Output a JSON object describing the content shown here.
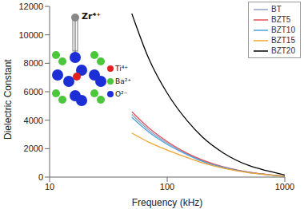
{
  "chart_data": {
    "type": "line",
    "x_label": "Frequency (kHz)",
    "y_label": "Dielectric Constant",
    "log": "x",
    "grid": false,
    "legend": "top right",
    "xlim": [
      10,
      1000
    ],
    "xticks": [
      10,
      100,
      1000
    ],
    "ylim": [
      0,
      12000
    ],
    "yticks": [
      0,
      2000,
      4000,
      6000,
      8000,
      10000,
      12000
    ],
    "x": [
      50,
      70,
      100,
      150,
      200,
      300,
      500,
      700,
      1000
    ],
    "annotations": [
      "Zr⁴⁺",
      "Ti⁴⁺",
      "Ba²⁺",
      "O²⁻"
    ],
    "series": [
      {
        "name": "BT",
        "color": "#8ea3c4",
        "marker": "none",
        "line_style": "solid",
        "values": [
          4400,
          3300,
          2400,
          1600,
          1150,
          700,
          330,
          180,
          60
        ]
      },
      {
        "name": "BZT5",
        "color": "#e0505a",
        "marker": "none",
        "line_style": "solid",
        "values": [
          4600,
          3450,
          2500,
          1650,
          1200,
          720,
          340,
          190,
          60
        ]
      },
      {
        "name": "BZT10",
        "color": "#4aa3df",
        "marker": "none",
        "line_style": "solid",
        "values": [
          4200,
          3150,
          2300,
          1550,
          1100,
          680,
          320,
          180,
          60
        ]
      },
      {
        "name": "BZT15",
        "color": "#f0a432",
        "marker": "none",
        "line_style": "solid",
        "values": [
          3100,
          2450,
          1900,
          1350,
          1000,
          620,
          300,
          170,
          50
        ]
      },
      {
        "name": "BZT20",
        "color": "#000000",
        "marker": "none",
        "line_style": "solid",
        "values": [
          11500,
          8300,
          5900,
          3900,
          2800,
          1700,
          800,
          450,
          150
        ]
      }
    ]
  }
}
